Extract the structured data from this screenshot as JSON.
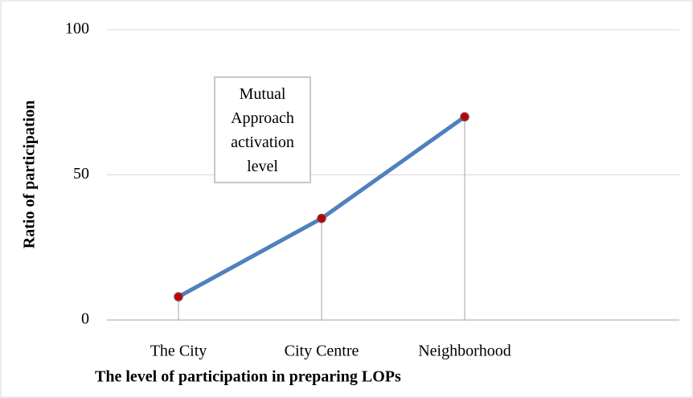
{
  "chart_data": {
    "type": "line",
    "x_label": "The level of participation in preparing LOPs",
    "y_label": "Ratio of participation",
    "categories": [
      "The City",
      "City Centre",
      "Neighborhood",
      null
    ],
    "series": [
      {
        "name": "Mutual Approach activation level",
        "color": "#4f81bd",
        "marker_color": "#c00000",
        "values": [
          8,
          35,
          70,
          null
        ]
      }
    ],
    "ylim": [
      0,
      100
    ],
    "yticks": [
      0,
      50,
      100
    ],
    "grid": true,
    "drop_lines": true
  }
}
